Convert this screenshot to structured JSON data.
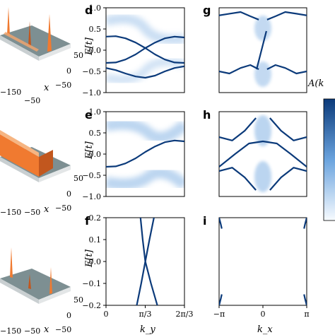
{
  "figure": {
    "panel_labels": {
      "d": "d",
      "e": "e",
      "f": "f",
      "g": "g",
      "h": "h",
      "i": "i"
    },
    "energy_axis_label": "E[t]",
    "ky_axis_label": "k_y",
    "kx_axis_label": "k_x",
    "colorbar_label": "A(k",
    "left_3d_ticks": {
      "y_50": "50",
      "y_0": "0",
      "y_m50": "−50",
      "x_m150": "−150",
      "x_m50": "−50",
      "x_label": "x"
    },
    "colors": {
      "band": "#0b3a7a",
      "spread": "#6aa3de",
      "surface": "#f07a30",
      "floor": "#7d8f92"
    }
  },
  "chart_data": [
    {
      "panel": "d",
      "type": "line",
      "xlim": [
        0,
        2.0944
      ],
      "ylim": [
        -1.0,
        1.0
      ],
      "xticks": [],
      "yticks": [
        "1.0",
        "0.5",
        "0.0",
        "−0.5",
        "−1.0"
      ],
      "series": [
        {
          "x": [
            0.0,
            0.26,
            0.52,
            0.79,
            1.05,
            1.31,
            1.57,
            1.83,
            2.09
          ],
          "y": [
            0.32,
            0.33,
            0.28,
            0.18,
            0.05,
            -0.1,
            -0.22,
            -0.29,
            -0.3
          ]
        },
        {
          "x": [
            0.0,
            0.26,
            0.52,
            0.79,
            1.05,
            1.31,
            1.57,
            1.83,
            2.09
          ],
          "y": [
            -0.3,
            -0.29,
            -0.22,
            -0.1,
            0.05,
            0.18,
            0.28,
            0.32,
            0.3
          ]
        },
        {
          "x": [
            0.0,
            0.26,
            0.52,
            0.79,
            1.05,
            1.31,
            1.57,
            1.83,
            2.09
          ],
          "y": [
            -0.42,
            -0.47,
            -0.55,
            -0.62,
            -0.65,
            -0.6,
            -0.5,
            -0.42,
            -0.38
          ]
        }
      ]
    },
    {
      "panel": "e",
      "type": "line",
      "xlim": [
        0,
        2.0944
      ],
      "ylim": [
        -1.0,
        1.0
      ],
      "xticks": [],
      "yticks": [
        "1.0",
        "0.5",
        "0.0",
        "−0.5",
        "−1.0"
      ],
      "series": [
        {
          "x": [
            0.0,
            0.26,
            0.52,
            0.79,
            1.05,
            1.31,
            1.57,
            1.83,
            2.09
          ],
          "y": [
            -0.3,
            -0.29,
            -0.22,
            -0.1,
            0.05,
            0.18,
            0.28,
            0.32,
            0.3
          ]
        }
      ]
    },
    {
      "panel": "f",
      "type": "line",
      "xlim": [
        0,
        2.0944
      ],
      "ylim": [
        -0.2,
        0.2
      ],
      "xticks": [
        "0",
        "π/3",
        "2π/3"
      ],
      "yticks": [
        "0.2",
        "0.1",
        "0.0",
        "−0.1",
        "−0.2"
      ],
      "series": [
        {
          "x": [
            0.82,
            0.94,
            1.05,
            1.16,
            1.28
          ],
          "y": [
            -0.2,
            -0.1,
            0.0,
            0.1,
            0.2
          ]
        },
        {
          "x": [
            0.92,
            0.98,
            1.05,
            1.2,
            1.37
          ],
          "y": [
            0.2,
            0.1,
            0.0,
            -0.1,
            -0.2
          ]
        }
      ]
    },
    {
      "panel": "g",
      "type": "line",
      "xlim": [
        -3.1416,
        3.1416
      ],
      "ylim": [
        -1.0,
        1.0
      ],
      "xticks": [],
      "yticks": [],
      "series": [
        {
          "x": [
            -3.14,
            -2.4,
            -1.6,
            -0.9,
            -0.3
          ],
          "y": [
            0.82,
            0.86,
            0.9,
            0.8,
            0.72
          ]
        },
        {
          "x": [
            0.3,
            0.9,
            1.6,
            2.4,
            3.14
          ],
          "y": [
            0.72,
            0.8,
            0.9,
            0.86,
            0.82
          ]
        },
        {
          "x": [
            -3.14,
            -2.4,
            -1.6,
            -0.9,
            -0.3
          ],
          "y": [
            -0.5,
            -0.55,
            -0.42,
            -0.35,
            -0.45
          ]
        },
        {
          "x": [
            0.3,
            0.9,
            1.6,
            2.4,
            3.14
          ],
          "y": [
            -0.45,
            -0.35,
            -0.42,
            -0.55,
            -0.5
          ]
        },
        {
          "x": [
            -0.45,
            -0.1,
            0.25
          ],
          "y": [
            -0.45,
            0.0,
            0.45
          ]
        }
      ]
    },
    {
      "panel": "h",
      "type": "line",
      "xlim": [
        -3.1416,
        3.1416
      ],
      "ylim": [
        -1.0,
        1.0
      ],
      "xticks": [],
      "yticks": [],
      "series": [
        {
          "x": [
            -3.14,
            -2.0,
            -1.0,
            0.0,
            1.0,
            2.0,
            3.14
          ],
          "y": [
            -0.3,
            0.0,
            0.25,
            0.3,
            0.25,
            0.0,
            -0.3
          ]
        },
        {
          "x": [
            -3.14,
            -2.2,
            -1.3,
            -0.5
          ],
          "y": [
            0.4,
            0.32,
            0.55,
            0.85
          ]
        },
        {
          "x": [
            0.5,
            1.3,
            2.2,
            3.14
          ],
          "y": [
            0.85,
            0.55,
            0.32,
            0.4
          ]
        },
        {
          "x": [
            -3.14,
            -2.2,
            -1.3,
            -0.5
          ],
          "y": [
            -0.4,
            -0.32,
            -0.55,
            -0.85
          ]
        },
        {
          "x": [
            0.5,
            1.3,
            2.2,
            3.14
          ],
          "y": [
            -0.85,
            -0.55,
            -0.32,
            -0.4
          ]
        }
      ]
    },
    {
      "panel": "i",
      "type": "line",
      "xlim": [
        -3.1416,
        3.1416
      ],
      "ylim": [
        -0.2,
        0.2
      ],
      "xticks": [
        "−π",
        "0",
        "π"
      ],
      "yticks": [],
      "series": [
        {
          "x": [
            -3.14,
            -3.02,
            -2.95
          ],
          "y": [
            -0.2,
            -0.17,
            -0.15
          ]
        },
        {
          "x": [
            -3.14,
            -3.02,
            -2.95
          ],
          "y": [
            0.2,
            0.17,
            0.15
          ]
        },
        {
          "x": [
            3.14,
            3.02,
            2.95
          ],
          "y": [
            -0.2,
            -0.17,
            -0.15
          ]
        },
        {
          "x": [
            3.14,
            3.02,
            2.95
          ],
          "y": [
            0.2,
            0.17,
            0.15
          ]
        }
      ]
    }
  ]
}
